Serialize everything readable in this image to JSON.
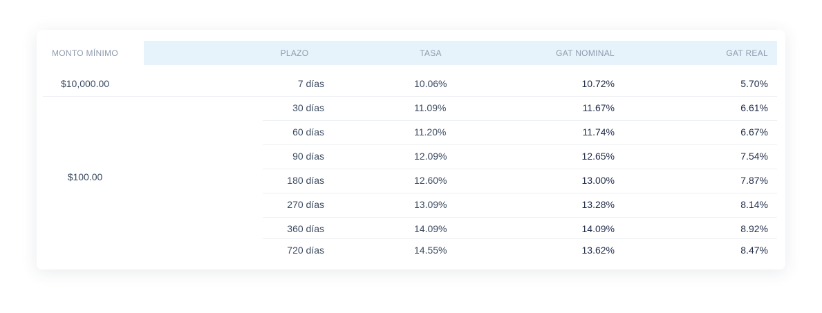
{
  "table": {
    "headers": [
      "MONTO MÍNIMO",
      "PLAZO",
      "TASA",
      "GAT NOMINAL",
      "GAT REAL"
    ],
    "groups": [
      {
        "monto": "$10,000.00",
        "rows": [
          [
            "7 días",
            "10.06%",
            "10.72%",
            "5.70%"
          ]
        ]
      },
      {
        "monto": "$100.00",
        "rows": [
          [
            "30 días",
            "11.09%",
            "11.67%",
            "6.61%"
          ],
          [
            "60 días",
            "11.20%",
            "11.74%",
            "6.67%"
          ],
          [
            "90 días",
            "12.09%",
            "12.65%",
            "7.54%"
          ],
          [
            "180 días",
            "12.60%",
            "13.00%",
            "7.87%"
          ],
          [
            "270 días",
            "13.09%",
            "13.28%",
            "8.14%"
          ],
          [
            "360 días",
            "14.09%",
            "14.09%",
            "8.92%"
          ],
          [
            "720 días",
            "14.55%",
            "13.62%",
            "8.47%"
          ]
        ]
      }
    ]
  }
}
